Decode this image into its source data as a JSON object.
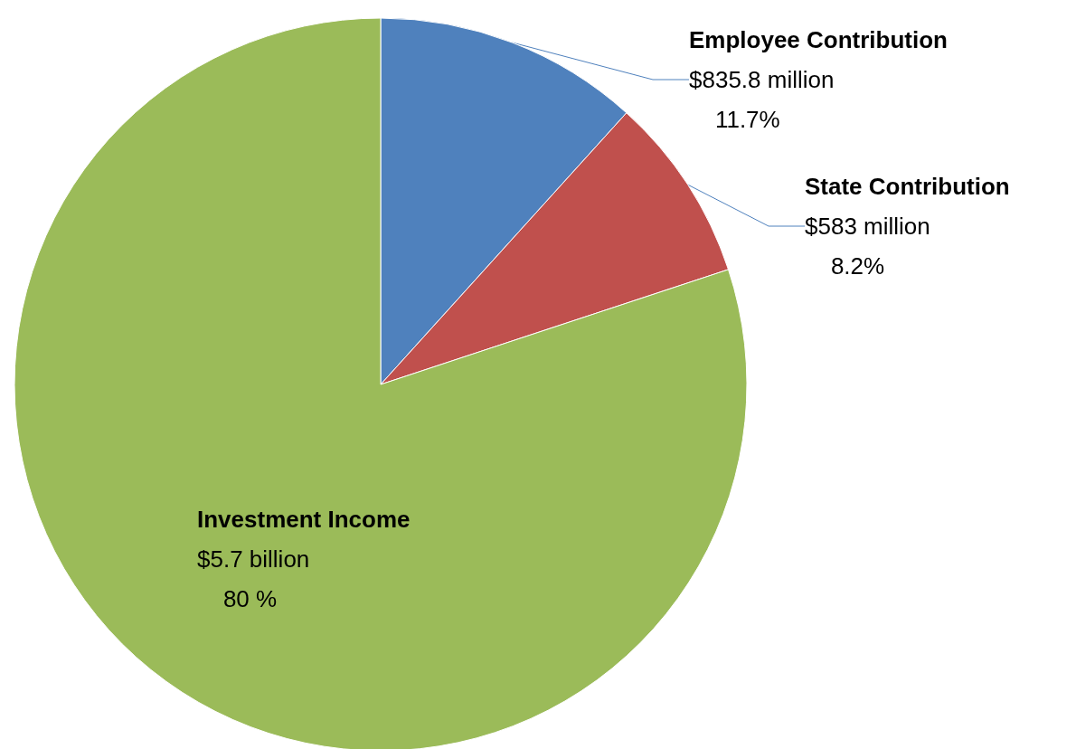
{
  "chart_data": {
    "type": "pie",
    "categories": [
      "Employee Contribution",
      "State Contribution",
      "Investment Income"
    ],
    "values": [
      11.7,
      8.2,
      80
    ],
    "colors": [
      "#4f81bd",
      "#c0504d",
      "#9bbb59"
    ],
    "value_labels": [
      "$835.8 million\n    11.7%",
      "$583 million\n    8.2%",
      "$5.7 billion\n    80 %"
    ],
    "legend": false
  }
}
